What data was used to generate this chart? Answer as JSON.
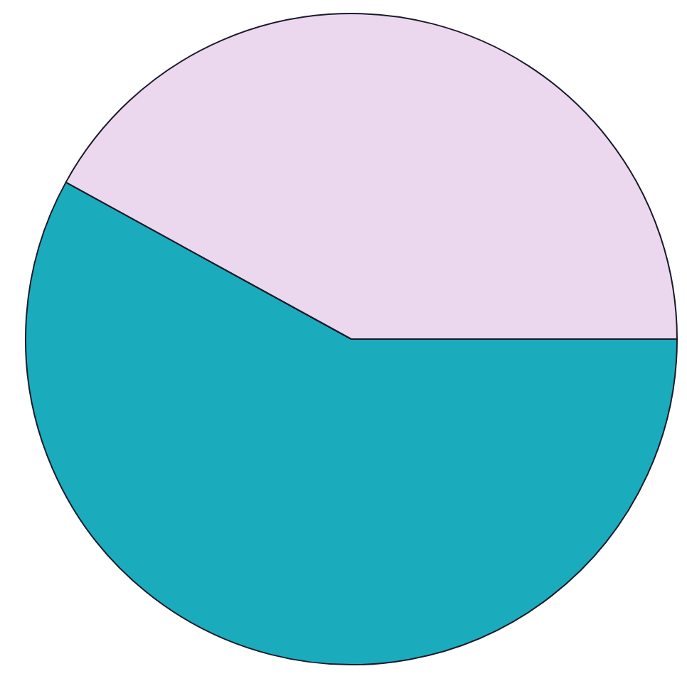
{
  "chart_data": {
    "type": "pie",
    "categories": [
      null,
      null
    ],
    "values": [
      58,
      42
    ],
    "colors": [
      "#1aacbc",
      "#ecd8ee"
    ],
    "legend": false
  }
}
